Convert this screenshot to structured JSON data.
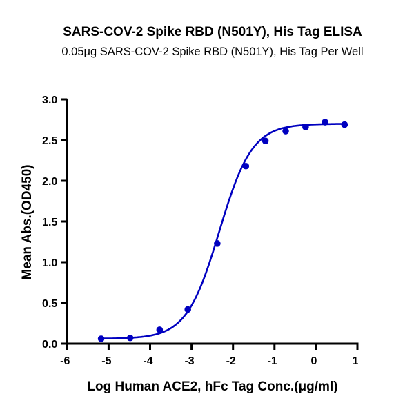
{
  "chart_data": {
    "type": "scatter",
    "title": "SARS-COV-2 Spike RBD (N501Y), His Tag ELISA",
    "subtitle": "0.05μg SARS-COV-2 Spike RBD (N501Y), His Tag Per Well",
    "xlabel": "Log Human ACE2, hFc Tag Conc.(μg/ml)",
    "ylabel": "Mean Abs.(OD450)",
    "xlim": [
      -6,
      1
    ],
    "ylim": [
      0,
      3.0
    ],
    "xticks": [
      "-6",
      "-5",
      "-4",
      "-3",
      "-2",
      "-1",
      "0",
      "1"
    ],
    "yticks": [
      "0.0",
      "0.5",
      "1.0",
      "1.5",
      "2.0",
      "2.5",
      "3.0"
    ],
    "grid": false,
    "color": "#0000c0",
    "points": {
      "x": [
        -5.18,
        -4.48,
        -3.77,
        -3.09,
        -2.38,
        -1.69,
        -1.22,
        -0.73,
        -0.25,
        0.22,
        0.69
      ],
      "y": [
        0.06,
        0.07,
        0.17,
        0.42,
        1.23,
        2.18,
        2.49,
        2.61,
        2.66,
        2.72,
        2.69
      ]
    },
    "fit_curve": {
      "model": "4PL",
      "bottom": 0.06,
      "top": 2.7,
      "log_ec50": -2.33,
      "hill_slope": 1.1
    }
  }
}
